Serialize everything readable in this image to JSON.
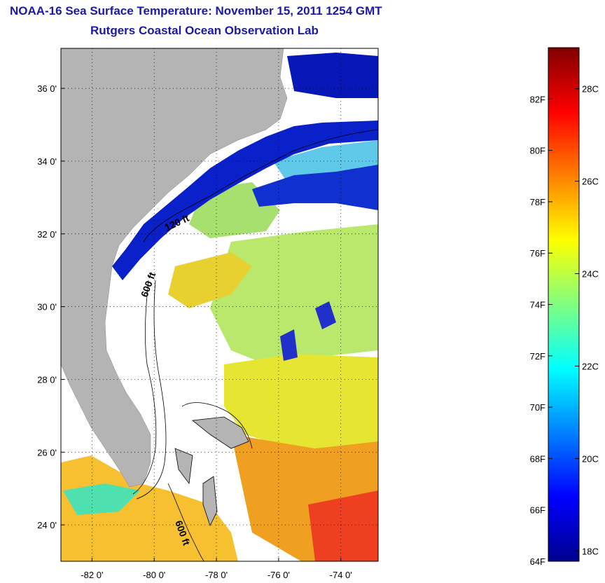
{
  "title": "NOAA-16 Sea Surface Temperature:  November 15, 2011 1254 GMT",
  "subtitle": "Rutgers Coastal Ocean Observation Lab",
  "map": {
    "lat_ticks": [
      {
        "value": 36,
        "label": "36 0'"
      },
      {
        "value": 34,
        "label": "34 0'"
      },
      {
        "value": 32,
        "label": "32 0'"
      },
      {
        "value": 30,
        "label": "30 0'"
      },
      {
        "value": 28,
        "label": "28 0'"
      },
      {
        "value": 26,
        "label": "26 0'"
      },
      {
        "value": 24,
        "label": "24 0'"
      }
    ],
    "lon_ticks": [
      {
        "value": -82,
        "label": "-82 0'"
      },
      {
        "value": -80,
        "label": "-80 0'"
      },
      {
        "value": -78,
        "label": "-78 0'"
      },
      {
        "value": -76,
        "label": "-76 0'"
      },
      {
        "value": -74,
        "label": "-74 0'"
      }
    ],
    "lat_range": [
      23,
      37.1
    ],
    "lon_range": [
      -83,
      -72.8
    ],
    "grid": "dotted",
    "contour_labels": [
      "120 ft",
      "600 ft",
      "600 ft"
    ],
    "colors": {
      "land": "#b4b4b4",
      "cloud": "#ffffff"
    }
  },
  "colorbar": {
    "f_range": [
      64,
      84
    ],
    "f_ticks": [
      {
        "value": 64,
        "label": "64F"
      },
      {
        "value": 66,
        "label": "66F"
      },
      {
        "value": 68,
        "label": "68F"
      },
      {
        "value": 70,
        "label": "70F"
      },
      {
        "value": 72,
        "label": "72F"
      },
      {
        "value": 74,
        "label": "74F"
      },
      {
        "value": 76,
        "label": "76F"
      },
      {
        "value": 78,
        "label": "78F"
      },
      {
        "value": 80,
        "label": "80F"
      },
      {
        "value": 82,
        "label": "82F"
      }
    ],
    "c_ticks": [
      {
        "value": 18,
        "label": "18C"
      },
      {
        "value": 20,
        "label": "20C"
      },
      {
        "value": 22,
        "label": "22C"
      },
      {
        "value": 24,
        "label": "24C"
      },
      {
        "value": 26,
        "label": "26C"
      },
      {
        "value": 28,
        "label": "28C"
      }
    ],
    "gradient": [
      "#00008f",
      "#0000ff",
      "#0080ff",
      "#00ffff",
      "#80ff80",
      "#ffff00",
      "#ff8000",
      "#ff0000",
      "#800000"
    ]
  }
}
